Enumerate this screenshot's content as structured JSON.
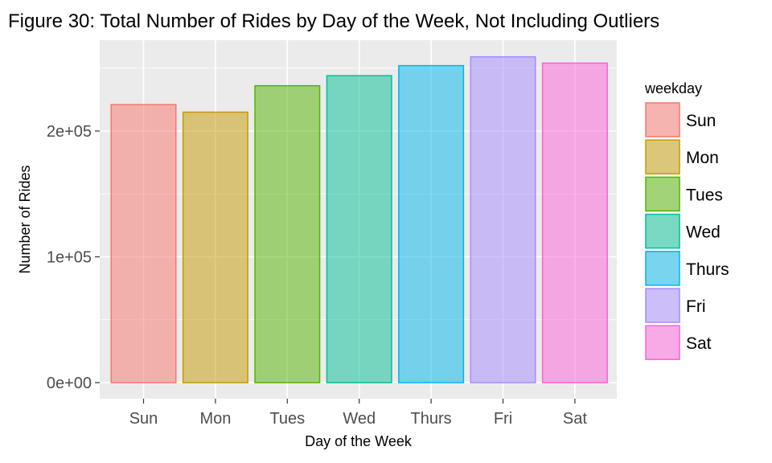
{
  "chart_data": {
    "type": "bar",
    "title": "Figure 30: Total Number of Rides by Day of the Week, Not Including Outliers",
    "xlabel": "Day of the Week",
    "ylabel": "Number of Rides",
    "categories": [
      "Sun",
      "Mon",
      "Tues",
      "Wed",
      "Thurs",
      "Fri",
      "Sat"
    ],
    "values": [
      221000,
      215000,
      236000,
      244000,
      252000,
      259000,
      254000
    ],
    "colors": [
      "#F8766D",
      "#C49A00",
      "#53B400",
      "#00C094",
      "#00B6EB",
      "#A58AFF",
      "#FB61D7"
    ],
    "fill_opacity": 0.5,
    "ylim": [
      0,
      260000
    ],
    "yticks": [
      0,
      100000,
      200000
    ],
    "ytick_labels": [
      "0e+00",
      "1e+05",
      "2e+05"
    ],
    "grid": true,
    "background": "#EBEBEB",
    "legend": {
      "title": "weekday",
      "position": "right",
      "entries": [
        "Sun",
        "Mon",
        "Tues",
        "Wed",
        "Thurs",
        "Fri",
        "Sat"
      ]
    }
  }
}
